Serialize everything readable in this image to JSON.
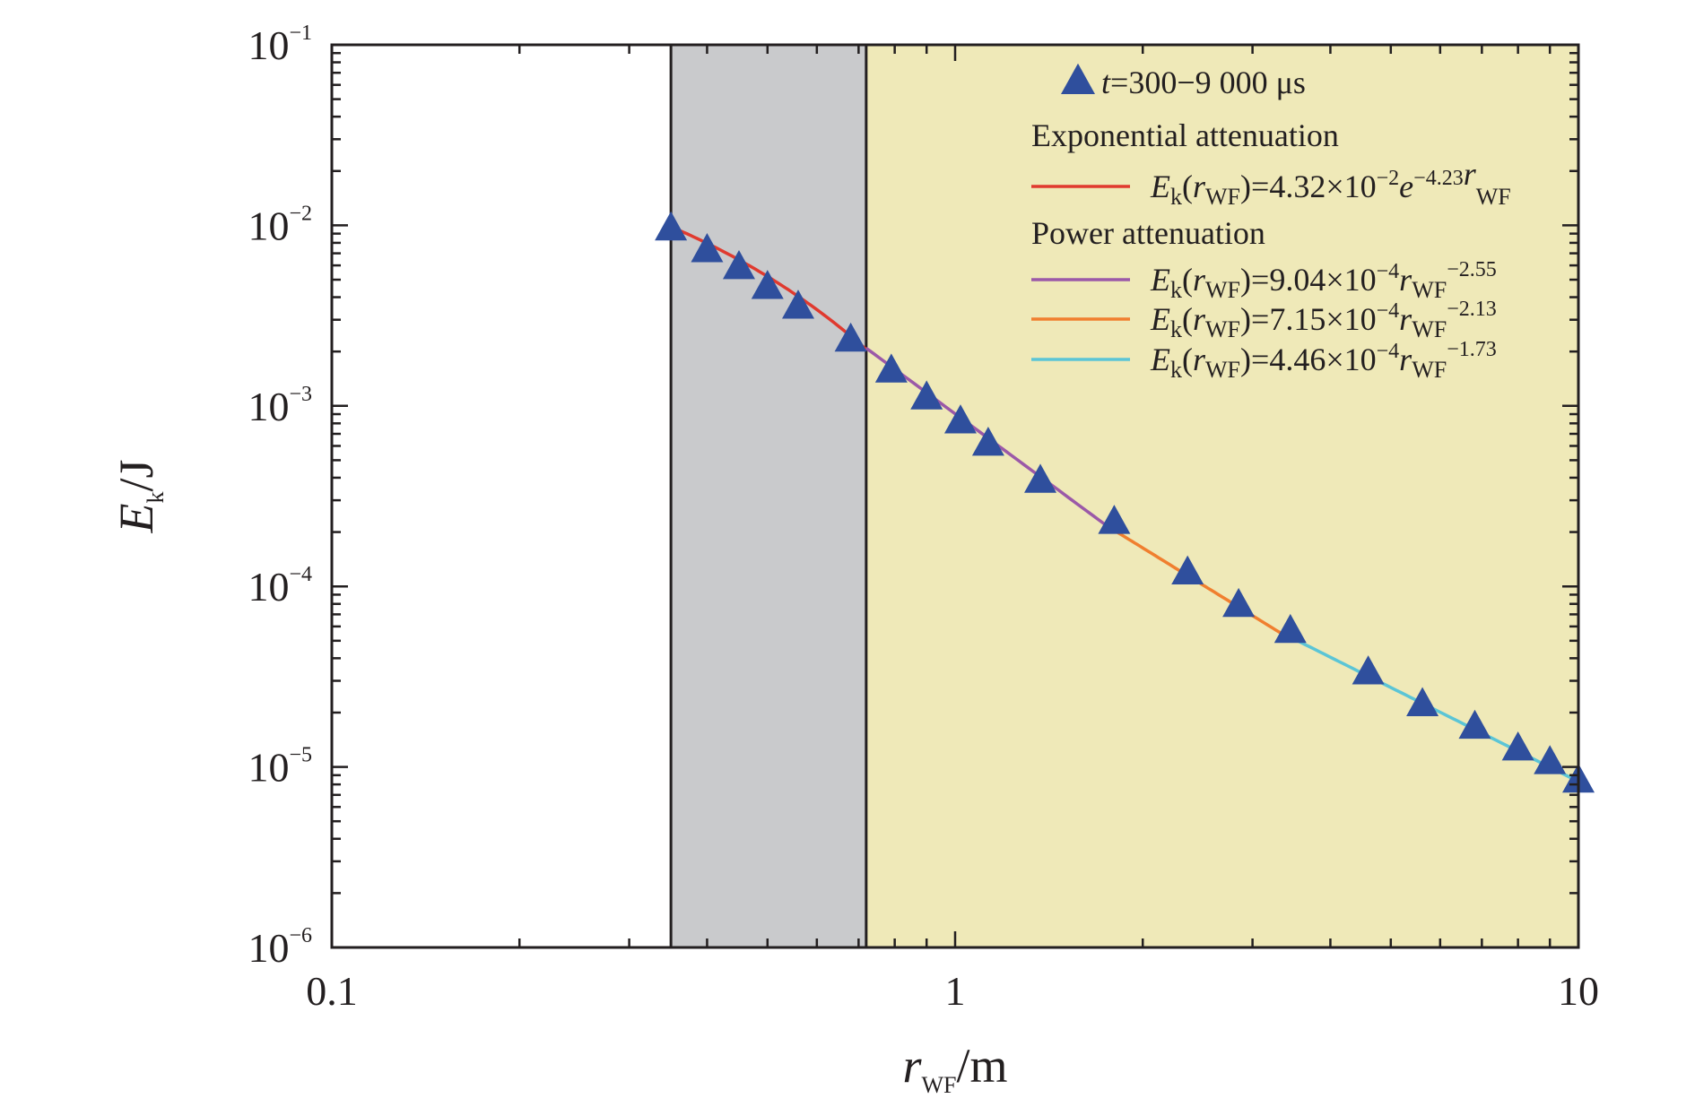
{
  "chart_data": {
    "type": "scatter",
    "x_scale": "log",
    "y_scale": "log",
    "xlim": [
      0.1,
      10
    ],
    "ylim": [
      1e-06,
      0.1
    ],
    "grid": false,
    "legend_position": "top-right",
    "x_ticks": [
      {
        "value": 0.1,
        "label": "0.1"
      },
      {
        "value": 1,
        "label": "1"
      },
      {
        "value": 10,
        "label": "10"
      }
    ],
    "y_ticks": [
      {
        "value": 1e-06,
        "base": "10",
        "exp": "−6"
      },
      {
        "value": 1e-05,
        "base": "10",
        "exp": "−5"
      },
      {
        "value": 0.0001,
        "base": "10",
        "exp": "−4"
      },
      {
        "value": 0.001,
        "base": "10",
        "exp": "−3"
      },
      {
        "value": 0.01,
        "base": "10",
        "exp": "−2"
      },
      {
        "value": 0.1,
        "base": "10",
        "exp": "−1"
      }
    ],
    "xlabel": {
      "main": "r",
      "sub": "WF",
      "tail": "/m"
    },
    "ylabel": {
      "main": "E",
      "sub": "k",
      "tail": "/J"
    },
    "regions": [
      {
        "x_from": 0.35,
        "x_to": 0.72,
        "color": "#c9cacc"
      },
      {
        "x_from": 0.72,
        "x_to": 10,
        "color": "#efe9b8"
      }
    ],
    "points": {
      "name": "t=300−9 000 μs",
      "name_parts": {
        "var": "t",
        "rest": "=300−9 000 μs"
      },
      "color": "#2f4f9d",
      "x": [
        0.35,
        0.4,
        0.45,
        0.5,
        0.56,
        0.68,
        0.79,
        0.9,
        1.02,
        1.13,
        1.37,
        1.8,
        2.36,
        2.85,
        3.45,
        4.6,
        5.62,
        6.82,
        8.0,
        9.0,
        10.0
      ],
      "y": [
        0.0095,
        0.0072,
        0.0058,
        0.0045,
        0.0035,
        0.0023,
        0.00155,
        0.0011,
        0.00081,
        0.00061,
        0.00038,
        0.000225,
        0.000118,
        7.8e-05,
        5.6e-05,
        3.3e-05,
        2.2e-05,
        1.65e-05,
        1.25e-05,
        1.05e-05,
        8.3e-06
      ]
    },
    "legend_groups": [
      "Exponential attenuation",
      "Power attenuation"
    ],
    "fits": [
      {
        "type": "exponential",
        "a": 0.0432,
        "b": -4.23,
        "x_range": [
          0.35,
          0.72
        ],
        "color": "#e03a2f",
        "label": {
          "coef": "4.32×10",
          "coef_exp": "−2",
          "tail_main": "e",
          "tail_exp": "−4.23",
          "tail2": "r",
          "tail2_sub": "WF",
          "tail2_exp": ""
        }
      },
      {
        "type": "power",
        "a": 0.000904,
        "b": -2.55,
        "x_range": [
          0.72,
          1.8
        ],
        "color": "#9b59a8",
        "label": {
          "coef": "9.04×10",
          "coef_exp": "−4",
          "tail_main": "r",
          "tail_sub": "WF",
          "tail_exp": "−2.55"
        }
      },
      {
        "type": "power",
        "a": 0.000715,
        "b": -2.13,
        "x_range": [
          1.8,
          3.45
        ],
        "color": "#f07f2f",
        "label": {
          "coef": "7.15×10",
          "coef_exp": "−4",
          "tail_main": "r",
          "tail_sub": "WF",
          "tail_exp": "−2.13"
        }
      },
      {
        "type": "power",
        "a": 0.000446,
        "b": -1.73,
        "x_range": [
          3.45,
          10.0
        ],
        "color": "#5bc5d6",
        "label": {
          "coef": "4.46×10",
          "coef_exp": "−4",
          "tail_main": "r",
          "tail_sub": "WF",
          "tail_exp": "−1.73"
        }
      }
    ],
    "fit_label_prefix": {
      "main": "E",
      "sub": "k",
      "open": "(",
      "var": "r",
      "var_sub": "WF",
      "close": ")="
    }
  }
}
